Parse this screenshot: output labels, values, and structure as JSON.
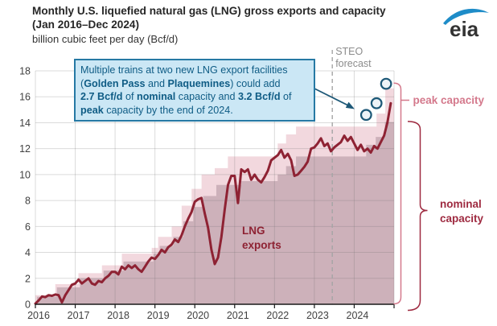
{
  "header": {
    "title_line1": "Monthly U.S. liquefied natural gas (LNG) gross exports and capacity",
    "title_line2": "(Jan 2016–Dec 2024)",
    "subtitle": "billion cubic feet per day (Bcf/d)",
    "logo_text": "eia"
  },
  "callout": {
    "segments": [
      {
        "t": "Multiple trains at two new LNG export facilities"
      },
      {
        "br": true
      },
      {
        "t": "("
      },
      {
        "t": "Golden Pass",
        "b": true
      },
      {
        "t": " and "
      },
      {
        "t": "Plaquemines",
        "b": true
      },
      {
        "t": ") could add"
      },
      {
        "br": true
      },
      {
        "t": "2.7 Bcf/d",
        "b": true
      },
      {
        "t": " of "
      },
      {
        "t": "nominal",
        "b": true
      },
      {
        "t": " capacity and "
      },
      {
        "t": "3.2 Bcf/d",
        "b": true
      },
      {
        "t": " of"
      },
      {
        "br": true
      },
      {
        "t": "peak",
        "b": true
      },
      {
        "t": " capacity by the end of 2024."
      }
    ]
  },
  "colors": {
    "peak_area": "#f2d8de",
    "nominal_area": "#cdb1ba",
    "exports_line": "#8e2233",
    "peak_label": "#d4798c",
    "nominal_label": "#9e2a40",
    "marker_stroke": "#1d5877",
    "marker_fill": "#edf3f7",
    "forecast_divider": "#a5a5a5",
    "forecast_label": "#8c8c8c",
    "grid": "rgba(110,110,110,0.25)",
    "axis": "#1a1a1a",
    "tick_text": "#3f3f3f",
    "logo_blue": "#1e8cc8",
    "logo_text": "#333333"
  },
  "chart_data": {
    "type": "line",
    "title": "Monthly U.S. liquefied natural gas (LNG) gross exports and capacity (Jan 2016–Dec 2024)",
    "ylabel": "billion cubic feet per day (Bcf/d)",
    "xlim": [
      2016,
      2025
    ],
    "ylim": [
      0,
      18
    ],
    "yticks": [
      0,
      2,
      4,
      6,
      8,
      10,
      12,
      14,
      16,
      18
    ],
    "xticks": [
      2016,
      2017,
      2018,
      2019,
      2020,
      2021,
      2022,
      2023,
      2024
    ],
    "grid": "on",
    "forecast_divider_x": 2023.45,
    "forecast_label": [
      "STEO",
      "forecast"
    ],
    "series": [
      {
        "name": "peak capacity",
        "type": "step-area",
        "steps": [
          [
            2016.0,
            0.7
          ],
          [
            2016.5,
            1.55
          ],
          [
            2017.08,
            2.4
          ],
          [
            2017.67,
            3.0
          ],
          [
            2018.17,
            3.9
          ],
          [
            2018.92,
            4.35
          ],
          [
            2019.08,
            5.2
          ],
          [
            2019.42,
            6.0
          ],
          [
            2019.67,
            7.6
          ],
          [
            2019.92,
            8.9
          ],
          [
            2020.17,
            10.0
          ],
          [
            2020.5,
            10.5
          ],
          [
            2020.83,
            11.4
          ],
          [
            2022.08,
            12.4
          ],
          [
            2022.29,
            13.1
          ],
          [
            2022.54,
            13.7
          ],
          [
            2024.56,
            14.7
          ],
          [
            2024.78,
            16.65
          ]
        ],
        "end_x": 2025.0
      },
      {
        "name": "nominal capacity",
        "type": "step-area",
        "steps": [
          [
            2016.04,
            0.58
          ],
          [
            2016.54,
            1.3
          ],
          [
            2017.12,
            2.0
          ],
          [
            2017.71,
            2.6
          ],
          [
            2018.21,
            3.3
          ],
          [
            2018.96,
            3.9
          ],
          [
            2019.12,
            4.5
          ],
          [
            2019.46,
            5.2
          ],
          [
            2019.71,
            6.4
          ],
          [
            2019.96,
            7.5
          ],
          [
            2020.21,
            8.35
          ],
          [
            2020.54,
            9.2
          ],
          [
            2021.17,
            9.5
          ],
          [
            2022.08,
            10.0
          ],
          [
            2022.29,
            10.65
          ],
          [
            2022.54,
            11.4
          ],
          [
            2024.3,
            12.3
          ],
          [
            2024.54,
            12.9
          ],
          [
            2024.77,
            14.05
          ]
        ],
        "end_x": 2025.0
      },
      {
        "name": "LNG exports",
        "type": "line",
        "x_start": 2016.0,
        "x_step_months": 1,
        "values": [
          0.05,
          0.3,
          0.6,
          0.55,
          0.7,
          0.65,
          0.75,
          0.7,
          0.15,
          0.7,
          1.1,
          1.5,
          1.6,
          1.9,
          1.6,
          1.8,
          2.0,
          1.6,
          1.5,
          1.8,
          1.7,
          2.0,
          2.2,
          2.5,
          2.5,
          2.3,
          2.9,
          2.7,
          3.0,
          2.8,
          3.0,
          2.7,
          2.5,
          2.9,
          3.3,
          3.6,
          3.5,
          3.8,
          4.2,
          4.0,
          4.4,
          4.6,
          5.0,
          4.8,
          5.3,
          6.0,
          6.6,
          7.1,
          7.9,
          8.1,
          8.2,
          7.0,
          5.9,
          4.2,
          3.1,
          3.6,
          5.2,
          7.3,
          9.2,
          9.9,
          9.9,
          7.8,
          10.4,
          10.2,
          10.4,
          9.6,
          10.0,
          9.6,
          9.4,
          9.8,
          10.3,
          11.1,
          11.3,
          11.5,
          11.9,
          11.3,
          11.6,
          11.1,
          9.9,
          10.0,
          10.3,
          10.6,
          11.0,
          12.0,
          12.1,
          12.4,
          12.8,
          12.2,
          12.4,
          11.8,
          12.1,
          12.3,
          12.5,
          13.0,
          12.6,
          12.9,
          12.4,
          11.9,
          12.3,
          11.8,
          12.0,
          11.7,
          12.2,
          12.0,
          12.5,
          13.0,
          14.0,
          15.5
        ]
      }
    ],
    "markers": {
      "name": "planned capacity addition markers",
      "points": [
        [
          2024.3,
          14.6
        ],
        [
          2024.56,
          15.5
        ],
        [
          2024.8,
          17.0
        ]
      ]
    },
    "labels": {
      "line_label": [
        "LNG",
        "exports"
      ],
      "peak_label": "peak capacity",
      "nominal_label": [
        "nominal",
        "capacity"
      ]
    },
    "brackets": [
      {
        "name": "peak",
        "top_value": 17.05,
        "bottom_value": 0
      },
      {
        "name": "nominal",
        "top_value": 14.1,
        "bottom_value": 0
      }
    ]
  }
}
